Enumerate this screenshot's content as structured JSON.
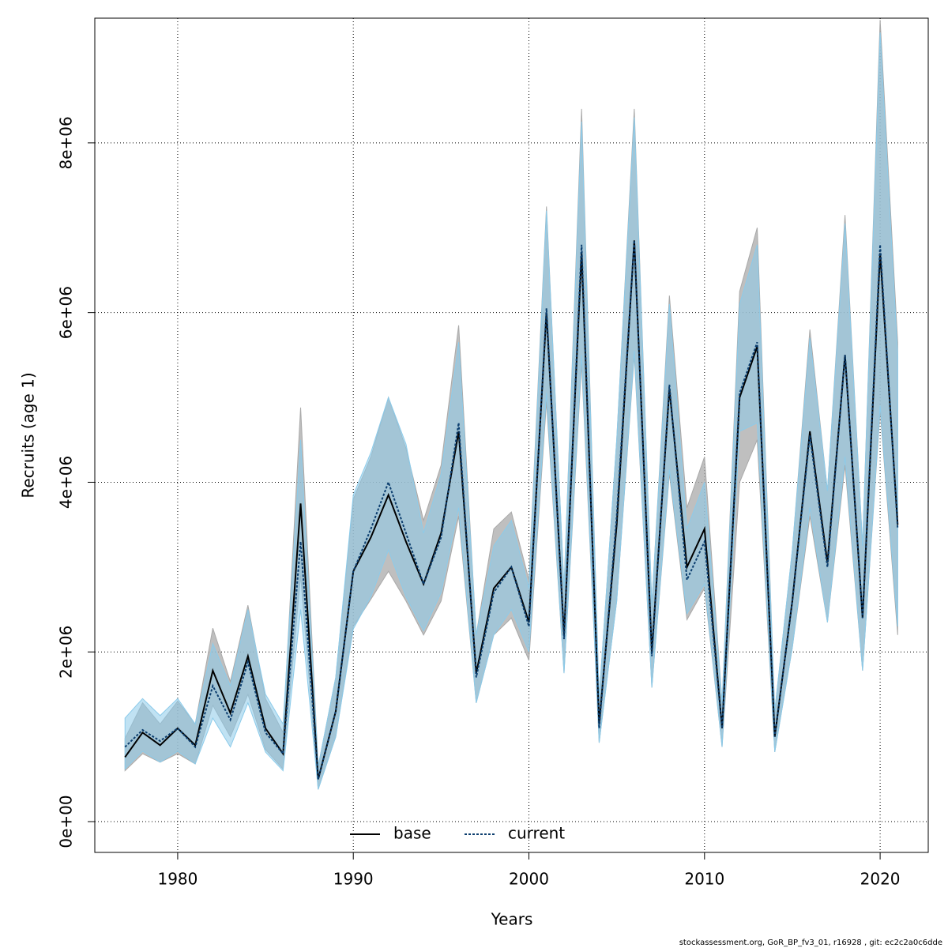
{
  "chart_data": {
    "type": "line",
    "xlabel": "Years",
    "ylabel": "Recruits (age 1)",
    "footer": "stockassessment.org, GoR_BP_fv3_01, r16928 , git: ec2c2a0c6dde",
    "x": [
      1977,
      1978,
      1979,
      1980,
      1981,
      1982,
      1983,
      1984,
      1985,
      1986,
      1987,
      1988,
      1989,
      1990,
      1991,
      1992,
      1993,
      1994,
      1995,
      1996,
      1997,
      1998,
      1999,
      2000,
      2001,
      2002,
      2003,
      2004,
      2005,
      2006,
      2007,
      2008,
      2009,
      2010,
      2011,
      2012,
      2013,
      2014,
      2015,
      2016,
      2017,
      2018,
      2019,
      2020,
      2021
    ],
    "series": [
      {
        "name": "base",
        "color": "#000000",
        "band_color": "#a9a9a9",
        "linestyle": "solid",
        "values": [
          760000,
          1050000,
          900000,
          1100000,
          900000,
          1780000,
          1280000,
          1950000,
          1100000,
          800000,
          3750000,
          500000,
          1300000,
          2950000,
          3350000,
          3850000,
          3300000,
          2800000,
          3400000,
          4600000,
          1750000,
          2750000,
          3000000,
          2350000,
          6000000,
          2200000,
          6700000,
          1150000,
          3500000,
          6850000,
          2000000,
          5100000,
          3000000,
          3450000,
          1100000,
          5000000,
          5600000,
          1000000,
          2600000,
          4600000,
          3050000,
          5500000,
          2400000,
          6700000,
          3500000
        ],
        "lower": [
          600000,
          800000,
          700000,
          800000,
          680000,
          1370000,
          1000000,
          1500000,
          850000,
          620000,
          2900000,
          380000,
          1000000,
          2300000,
          2620000,
          2950000,
          2600000,
          2200000,
          2600000,
          3600000,
          1400000,
          2200000,
          2400000,
          1900000,
          4950000,
          1750000,
          5400000,
          930000,
          2600000,
          5500000,
          1580000,
          4100000,
          2380000,
          2750000,
          880000,
          4000000,
          4500000,
          820000,
          2050000,
          3600000,
          2350000,
          4200000,
          1780000,
          4850000,
          2200000
        ],
        "upper": [
          980000,
          1400000,
          1150000,
          1420000,
          1150000,
          2280000,
          1650000,
          2550000,
          1450000,
          1050000,
          4880000,
          650000,
          1700000,
          3800000,
          4300000,
          5000000,
          4400000,
          3550000,
          4200000,
          5850000,
          2200000,
          3450000,
          3650000,
          2850000,
          7250000,
          2750000,
          8400000,
          1450000,
          4500000,
          8400000,
          2550000,
          6200000,
          3700000,
          4300000,
          1400000,
          6250000,
          7000000,
          1300000,
          3200000,
          5800000,
          3900000,
          7150000,
          3250000,
          9450000,
          5650000
        ]
      },
      {
        "name": "current",
        "color": "#0b3d6e",
        "band_color": "#8ccbea",
        "linestyle": "dotted",
        "values": [
          880000,
          1080000,
          950000,
          1100000,
          880000,
          1600000,
          1200000,
          1880000,
          1050000,
          800000,
          3300000,
          500000,
          1300000,
          2950000,
          3450000,
          4000000,
          3400000,
          2800000,
          3350000,
          4700000,
          1700000,
          2700000,
          3000000,
          2300000,
          6050000,
          2150000,
          6800000,
          1100000,
          3600000,
          6850000,
          1950000,
          5150000,
          2850000,
          3300000,
          1100000,
          5050000,
          5650000,
          1000000,
          2600000,
          4550000,
          3000000,
          5500000,
          2400000,
          6800000,
          3450000
        ],
        "lower": [
          620000,
          830000,
          700000,
          830000,
          680000,
          1220000,
          880000,
          1400000,
          820000,
          600000,
          2500000,
          380000,
          1000000,
          2270000,
          2650000,
          3200000,
          2650000,
          2250000,
          2700000,
          3700000,
          1400000,
          2200000,
          2500000,
          2000000,
          5050000,
          1750000,
          5500000,
          930000,
          2600000,
          5550000,
          1580000,
          4150000,
          2450000,
          2800000,
          880000,
          4600000,
          4700000,
          820000,
          2050000,
          3700000,
          2350000,
          4300000,
          1780000,
          4900000,
          2300000
        ],
        "upper": [
          1220000,
          1450000,
          1250000,
          1450000,
          1150000,
          2100000,
          1600000,
          2500000,
          1500000,
          1150000,
          4500000,
          650000,
          1700000,
          3850000,
          4350000,
          5000000,
          4450000,
          3400000,
          4100000,
          5650000,
          2200000,
          3250000,
          3550000,
          2750000,
          7200000,
          2750000,
          8250000,
          1450000,
          4500000,
          8300000,
          2550000,
          6100000,
          3450000,
          4000000,
          1400000,
          6100000,
          6800000,
          1300000,
          3200000,
          5700000,
          3900000,
          7050000,
          3250000,
          9300000,
          5500000
        ]
      }
    ],
    "xlim": [
      1975.28,
      2022.74
    ],
    "ylim": [
      -363000,
      9470000
    ],
    "xticks": [
      1980,
      1990,
      2000,
      2010,
      2020
    ],
    "yticks": [
      {
        "value": 0,
        "label": "0e+00"
      },
      {
        "value": 2000000,
        "label": "2e+06"
      },
      {
        "value": 4000000,
        "label": "4e+06"
      },
      {
        "value": 6000000,
        "label": "6e+06"
      },
      {
        "value": 8000000,
        "label": "8e+06"
      }
    ],
    "grid": true,
    "legend": "bottom"
  }
}
